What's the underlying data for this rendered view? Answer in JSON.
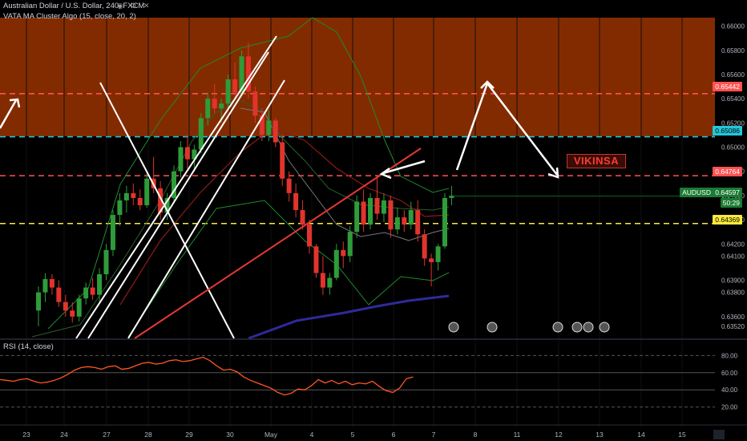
{
  "header": {
    "title": "Australian Dollar / U.S. Dollar, 240, FXCM",
    "indicator": "VATA MA Cluster Algo (15, close, 20, 2)",
    "rsi_label": "RSI (14, close)"
  },
  "annotations": {
    "text_label": "VIKINSA"
  },
  "price_tags": {
    "symbol": "AUDUSD",
    "symbol_price": "0.64597",
    "countdown": "50:29",
    "level_top": "0.65442",
    "level_cyan": "0.65086",
    "level_red": "0.64764",
    "level_yellow": "0.64369"
  },
  "colors": {
    "background": "#000000",
    "zone": "#8a2d00",
    "candle_up": "#2e9c3a",
    "candle_down": "#e0342d",
    "level_top": "#ff5252",
    "level_cyan": "#26c6da",
    "level_red": "#ff5252",
    "level_yellow": "#ffeb3b",
    "rsi_line": "#ff5722",
    "ma_blue": "#2e2a9c"
  },
  "chart_data": {
    "type": "candlestick",
    "price_axis": {
      "range": [
        0.6342,
        0.6607
      ],
      "ticks": [
        "0.66000",
        "0.65800",
        "0.65600",
        "0.65400",
        "0.65200",
        "0.65000",
        "0.64800",
        "0.64600",
        "0.64400",
        "0.64200",
        "0.64100",
        "0.63900",
        "0.63800",
        "0.63600",
        "0.63520"
      ],
      "tick_values": [
        0.66,
        0.658,
        0.656,
        0.654,
        0.652,
        0.65,
        0.648,
        0.646,
        0.644,
        0.642,
        0.641,
        0.639,
        0.638,
        0.636,
        0.6352
      ]
    },
    "date_axis": {
      "ticks": [
        "23",
        "24",
        "27",
        "28",
        "29",
        "30",
        "May",
        "4",
        "5",
        "6",
        "7",
        "8",
        "11",
        "12",
        "13",
        "14",
        "15"
      ]
    },
    "resistance_zone": [
      0.6509,
      0.6607
    ],
    "levels": [
      {
        "value": 0.65442,
        "style": "dashed",
        "color": "red"
      },
      {
        "value": 0.65086,
        "style": "dashed",
        "color": "cyan"
      },
      {
        "value": 0.64764,
        "style": "dashed",
        "color": "red"
      },
      {
        "value": 0.64369,
        "style": "dashed",
        "color": "yellow"
      }
    ],
    "candles": [
      [
        0.6365,
        0.6385,
        0.6352,
        0.638
      ],
      [
        0.638,
        0.6396,
        0.6372,
        0.6391
      ],
      [
        0.6391,
        0.6395,
        0.6378,
        0.6384
      ],
      [
        0.6384,
        0.639,
        0.6368,
        0.6372
      ],
      [
        0.6372,
        0.6378,
        0.636,
        0.6365
      ],
      [
        0.6365,
        0.6372,
        0.6355,
        0.636
      ],
      [
        0.636,
        0.6378,
        0.6356,
        0.6375
      ],
      [
        0.6375,
        0.6388,
        0.637,
        0.6384
      ],
      [
        0.6384,
        0.6392,
        0.6374,
        0.6378
      ],
      [
        0.6378,
        0.64,
        0.6372,
        0.6395
      ],
      [
        0.6395,
        0.642,
        0.639,
        0.6415
      ],
      [
        0.6415,
        0.6448,
        0.641,
        0.6444
      ],
      [
        0.6444,
        0.6462,
        0.6435,
        0.6456
      ],
      [
        0.6456,
        0.6468,
        0.6446,
        0.6462
      ],
      [
        0.6462,
        0.647,
        0.6452,
        0.6458
      ],
      [
        0.6458,
        0.6465,
        0.6448,
        0.6452
      ],
      [
        0.6452,
        0.6478,
        0.645,
        0.6474
      ],
      [
        0.6474,
        0.6492,
        0.6462,
        0.6466
      ],
      [
        0.6466,
        0.6472,
        0.644,
        0.6446
      ],
      [
        0.6446,
        0.6462,
        0.644,
        0.6458
      ],
      [
        0.6458,
        0.6485,
        0.6455,
        0.648
      ],
      [
        0.648,
        0.6505,
        0.6475,
        0.65
      ],
      [
        0.65,
        0.651,
        0.6482,
        0.649
      ],
      [
        0.649,
        0.6502,
        0.648,
        0.6498
      ],
      [
        0.6498,
        0.6528,
        0.6495,
        0.6524
      ],
      [
        0.6524,
        0.6545,
        0.6518,
        0.654
      ],
      [
        0.654,
        0.6552,
        0.6528,
        0.6532
      ],
      [
        0.6532,
        0.654,
        0.652,
        0.6536
      ],
      [
        0.6536,
        0.656,
        0.6532,
        0.6556
      ],
      [
        0.6556,
        0.657,
        0.654,
        0.6545
      ],
      [
        0.6545,
        0.658,
        0.6542,
        0.6575
      ],
      [
        0.6575,
        0.6586,
        0.654,
        0.6546
      ],
      [
        0.6546,
        0.655,
        0.652,
        0.6526
      ],
      [
        0.6526,
        0.6532,
        0.6505,
        0.651
      ],
      [
        0.651,
        0.653,
        0.6505,
        0.6522
      ],
      [
        0.6522,
        0.6524,
        0.65,
        0.6504
      ],
      [
        0.6504,
        0.651,
        0.6468,
        0.6474
      ],
      [
        0.6474,
        0.648,
        0.6455,
        0.6462
      ],
      [
        0.6462,
        0.647,
        0.6442,
        0.6448
      ],
      [
        0.6448,
        0.6456,
        0.6432,
        0.6436
      ],
      [
        0.6436,
        0.644,
        0.6412,
        0.6418
      ],
      [
        0.6418,
        0.642,
        0.6392,
        0.6396
      ],
      [
        0.6396,
        0.641,
        0.6378,
        0.6384
      ],
      [
        0.6384,
        0.6396,
        0.6378,
        0.6392
      ],
      [
        0.6392,
        0.642,
        0.639,
        0.6415
      ],
      [
        0.6415,
        0.6422,
        0.64,
        0.641
      ],
      [
        0.641,
        0.6435,
        0.6405,
        0.643
      ],
      [
        0.643,
        0.646,
        0.6425,
        0.6455
      ],
      [
        0.6455,
        0.6465,
        0.643,
        0.6436
      ],
      [
        0.6436,
        0.6462,
        0.6432,
        0.6458
      ],
      [
        0.6458,
        0.6476,
        0.644,
        0.6445
      ],
      [
        0.6445,
        0.6462,
        0.6438,
        0.6456
      ],
      [
        0.6456,
        0.646,
        0.6425,
        0.6432
      ],
      [
        0.6432,
        0.645,
        0.6428,
        0.6442
      ],
      [
        0.6442,
        0.6448,
        0.643,
        0.6436
      ],
      [
        0.6436,
        0.6455,
        0.6432,
        0.6448
      ],
      [
        0.6448,
        0.6456,
        0.6422,
        0.6428
      ],
      [
        0.6428,
        0.6432,
        0.6402,
        0.6408
      ],
      [
        0.6408,
        0.6412,
        0.6385,
        0.6405
      ],
      [
        0.6405,
        0.642,
        0.6398,
        0.6418
      ],
      [
        0.6418,
        0.6462,
        0.6416,
        0.6458
      ],
      [
        0.6458,
        0.6468,
        0.6452,
        0.646
      ]
    ],
    "ma_blue": [
      [
        0.6342,
        37
      ],
      [
        0.6352,
        45
      ],
      [
        0.636,
        52
      ],
      [
        0.6366,
        58
      ],
      [
        0.637,
        62
      ]
    ],
    "rsi": {
      "range": [
        0,
        100
      ],
      "ticks": [
        "80.00",
        "60.00",
        "40.00",
        "20.00"
      ],
      "tick_values": [
        80,
        60,
        40,
        20
      ],
      "values": [
        52,
        51,
        50,
        52,
        53,
        50,
        48,
        49,
        51,
        54,
        58,
        63,
        66,
        67,
        66,
        64,
        67,
        68,
        64,
        65,
        68,
        71,
        72,
        70,
        71,
        74,
        75,
        73,
        74,
        76,
        78,
        74,
        68,
        63,
        64,
        61,
        55,
        51,
        48,
        45,
        42,
        37,
        34,
        36,
        41,
        40,
        45,
        52,
        48,
        51,
        47,
        50,
        46,
        48,
        47,
        50,
        44,
        39,
        37,
        42,
        53,
        55
      ]
    }
  }
}
